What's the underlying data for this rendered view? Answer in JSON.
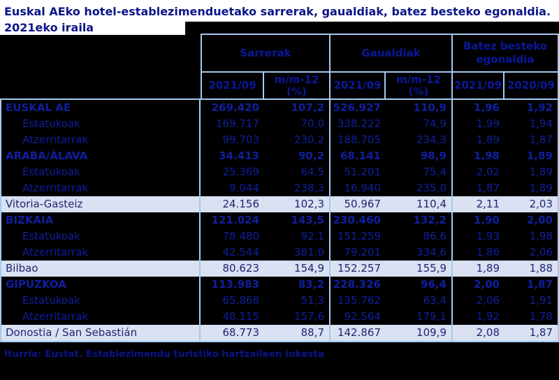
{
  "title_line1": "Euskal AEko hotel-establezimenduetako sarrerak, gaualdiak, batez besteko egonaldia.",
  "title_line2": "2021eko iraila",
  "source": "Iturria: Eustat. Establezimendu turistiko hartzaileen inkesta",
  "colors": {
    "background": "#000000",
    "border": "#A6C9F0",
    "navy_text": "#101F9E",
    "title_text": "#0A1489",
    "light_row_bg": "#D9E1F2",
    "light_row_text": "#1F2570"
  },
  "table": {
    "column_groups": [
      {
        "label": "Sarrerak",
        "sub": [
          "2021/09",
          "m/m-12\n(%)"
        ]
      },
      {
        "label": "Gaualdiak",
        "sub": [
          "2021/09",
          "m/m-12\n(%)"
        ]
      },
      {
        "label": "Batez besteko\negonaldia",
        "sub": [
          "2021/09",
          "2020/09"
        ]
      }
    ],
    "rows": [
      {
        "label": "EUSKAL AE",
        "style": "bold",
        "values": [
          "269.420",
          "107,2",
          "526.927",
          "110,9",
          "1,96",
          "1,92"
        ]
      },
      {
        "label": "Estatukoak",
        "style": "sub",
        "values": [
          "169.717",
          "70,0",
          "338.222",
          "74,9",
          "1,99",
          "1,94"
        ]
      },
      {
        "label": "Atzerritarrak",
        "style": "sub",
        "values": [
          "99.703",
          "230,2",
          "188.705",
          "234,3",
          "1,89",
          "1,87"
        ]
      },
      {
        "label": "ARABA/ÁLAVA",
        "style": "bold",
        "values": [
          "34.413",
          "90,2",
          "68.141",
          "98,9",
          "1,98",
          "1,89"
        ]
      },
      {
        "label": "Estatukoak",
        "style": "sub",
        "values": [
          "25.369",
          "64,5",
          "51.201",
          "75,4",
          "2,02",
          "1,89"
        ]
      },
      {
        "label": "Atzerritarrak",
        "style": "sub",
        "values": [
          "9.044",
          "238,3",
          "16.940",
          "235,0",
          "1,87",
          "1,89"
        ]
      },
      {
        "label": "Vitoria-Gasteiz",
        "style": "light",
        "values": [
          "24.156",
          "102,3",
          "50.967",
          "110,4",
          "2,11",
          "2,03"
        ]
      },
      {
        "label": "BIZKAIA",
        "style": "bold",
        "values": [
          "121.024",
          "143,5",
          "230.460",
          "132,2",
          "1,90",
          "2,00"
        ]
      },
      {
        "label": "Estatukoak",
        "style": "sub",
        "values": [
          "78.480",
          "92,1",
          "151.259",
          "86,6",
          "1,93",
          "1,98"
        ]
      },
      {
        "label": "Atzerritarrak",
        "style": "sub",
        "values": [
          "42.544",
          "381,0",
          "79.201",
          "334,6",
          "1,86",
          "2,06"
        ]
      },
      {
        "label": "Bilbao",
        "style": "light",
        "values": [
          "80.623",
          "154,9",
          "152.257",
          "155,9",
          "1,89",
          "1,88"
        ]
      },
      {
        "label": "GIPUZKOA",
        "style": "bold",
        "values": [
          "113.983",
          "83,2",
          "228.326",
          "96,4",
          "2,00",
          "1,87"
        ]
      },
      {
        "label": "Estatukoak",
        "style": "sub",
        "values": [
          "65.868",
          "51,3",
          "135.762",
          "63,4",
          "2,06",
          "1,91"
        ]
      },
      {
        "label": "Atzerritarrak",
        "style": "sub",
        "values": [
          "48.115",
          "157,6",
          "92.564",
          "179,1",
          "1,92",
          "1,78"
        ]
      },
      {
        "label": "Donostia / San Sebastián",
        "style": "light",
        "values": [
          "68.773",
          "88,7",
          "142.867",
          "109,9",
          "2,08",
          "1,87"
        ]
      }
    ]
  }
}
